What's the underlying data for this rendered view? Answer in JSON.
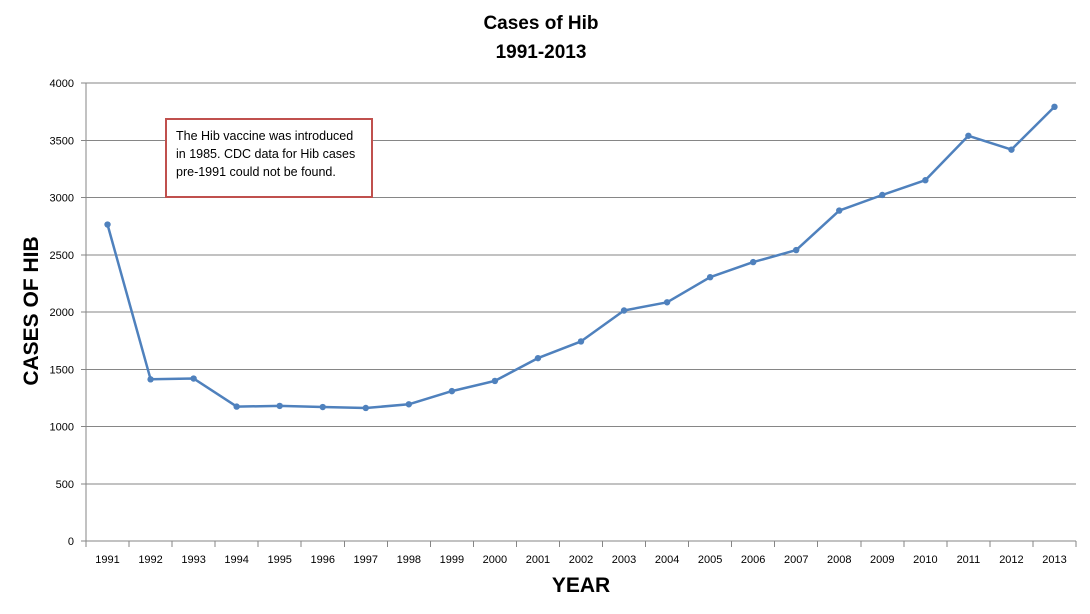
{
  "chart_data": {
    "type": "line",
    "title": "Cases of Hib",
    "subtitle": "1991-2013",
    "xlabel": "YEAR",
    "ylabel": "CASES OF HIB",
    "categories": [
      "1991",
      "1992",
      "1993",
      "1994",
      "1995",
      "1996",
      "1997",
      "1998",
      "1999",
      "2000",
      "2001",
      "2002",
      "2003",
      "2004",
      "2005",
      "2006",
      "2007",
      "2008",
      "2009",
      "2010",
      "2011",
      "2012",
      "2013"
    ],
    "series": [
      {
        "color": "#4f81bd",
        "values": [
          2764,
          1412,
          1419,
          1174,
          1180,
          1170,
          1162,
          1194,
          1309,
          1398,
          1597,
          1743,
          2013,
          2085,
          2304,
          2436,
          2541,
          2886,
          3022,
          3151,
          3539,
          3418,
          3792
        ]
      }
    ],
    "ylim": [
      0,
      4000
    ],
    "yticks": [
      0,
      500,
      1000,
      1500,
      2000,
      2500,
      3000,
      3500,
      4000
    ],
    "grid": true,
    "legend": "none",
    "annotations": [
      {
        "lines": [
          "The Hib vaccine was introduced",
          "in 1985. CDC data for Hib cases",
          "pre-1991 could not be found."
        ],
        "border_color": "#c0504d",
        "position": "top-left"
      }
    ]
  }
}
